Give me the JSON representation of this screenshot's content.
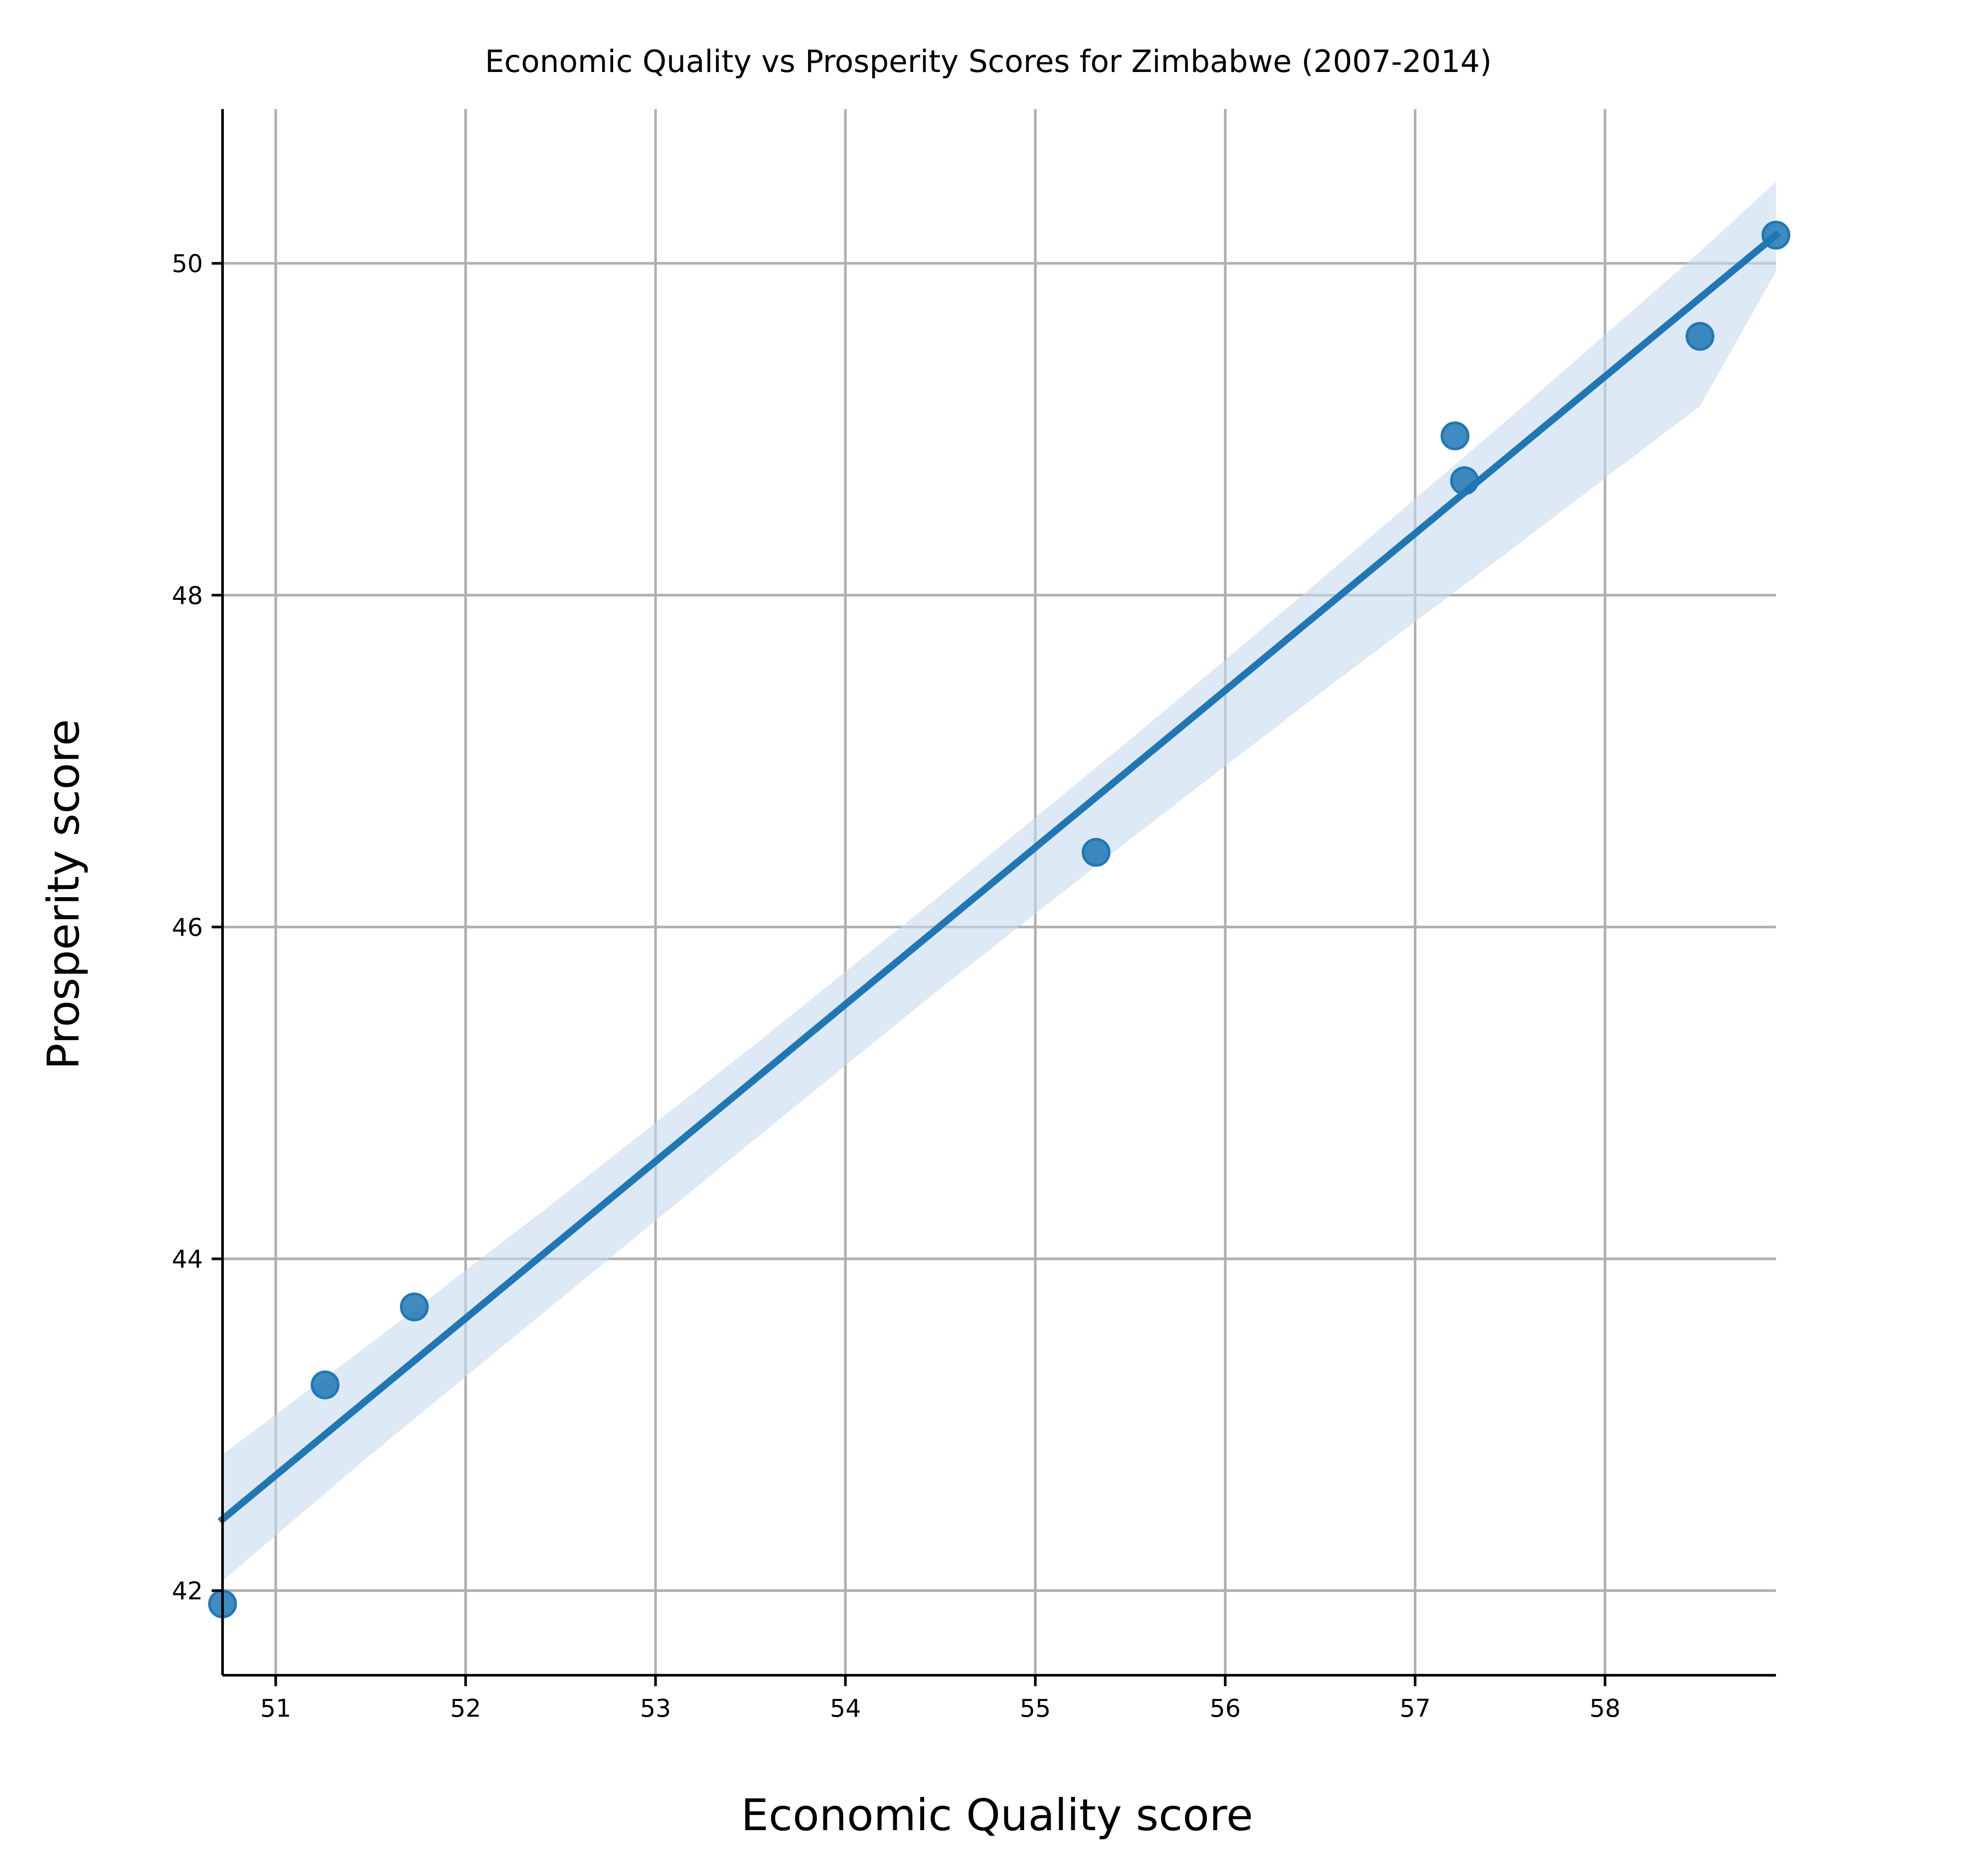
{
  "chart_data": {
    "type": "scatter",
    "title": "Economic Quality vs Prosperity Scores for Zimbabwe (2007-2014)",
    "xlabel": "Economic Quality score",
    "ylabel": "Prosperity score",
    "xlim": [
      50.72,
      58.9
    ],
    "ylim": [
      41.49,
      50.93
    ],
    "xticks": [
      51,
      52,
      53,
      54,
      55,
      56,
      57,
      58
    ],
    "yticks": [
      42,
      44,
      46,
      48,
      50
    ],
    "grid": true,
    "points": [
      {
        "x": 50.72,
        "y": 41.92
      },
      {
        "x": 51.26,
        "y": 43.24
      },
      {
        "x": 51.73,
        "y": 43.71
      },
      {
        "x": 55.32,
        "y": 46.45
      },
      {
        "x": 57.21,
        "y": 48.96
      },
      {
        "x": 57.26,
        "y": 48.69
      },
      {
        "x": 58.5,
        "y": 49.56
      },
      {
        "x": 58.9,
        "y": 50.17
      }
    ],
    "regression": {
      "x": [
        50.72,
        58.9
      ],
      "y": [
        42.43,
        50.17
      ]
    },
    "confidence_band": {
      "x": [
        50.72,
        51.5,
        52.5,
        53.5,
        54.5,
        55.5,
        56.5,
        57.5,
        58.5,
        58.9
      ],
      "upper": [
        42.82,
        43.49,
        44.37,
        45.27,
        46.19,
        47.13,
        48.09,
        49.07,
        50.07,
        50.49
      ],
      "lower": [
        42.06,
        42.82,
        43.76,
        44.7,
        45.63,
        46.53,
        47.41,
        48.27,
        49.14,
        49.95
      ]
    },
    "colors": {
      "points": "#1f77b4",
      "line": "#1f77b4",
      "band": "#c6dbef",
      "grid": "#b0b0b0"
    }
  }
}
